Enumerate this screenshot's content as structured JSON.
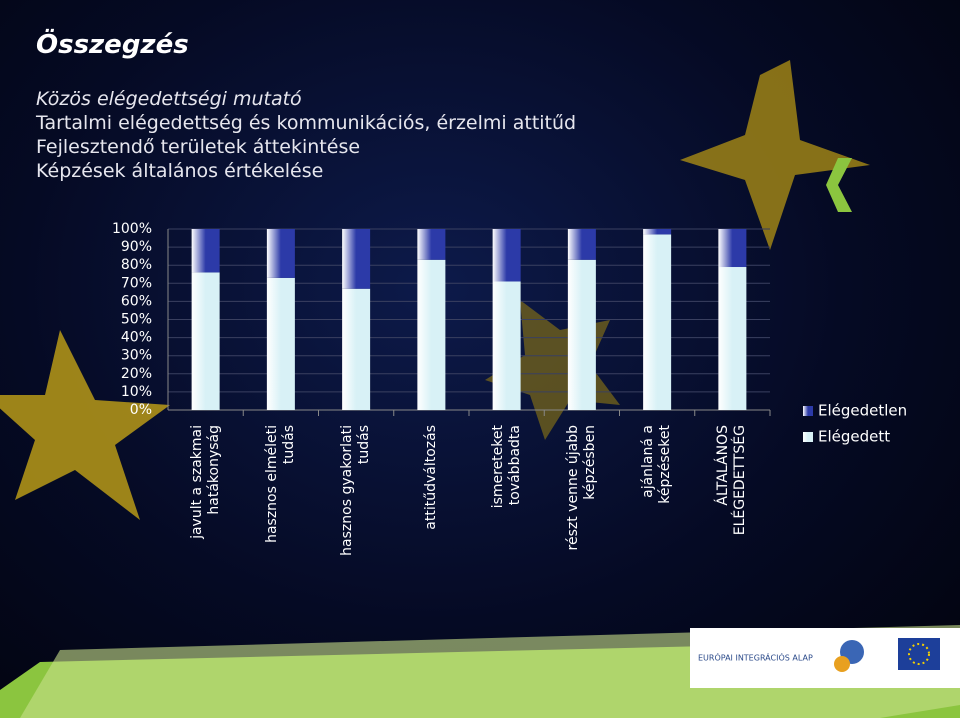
{
  "header": {
    "title": "Összegzés",
    "lines": [
      "Közös elégedettségi mutató",
      "Tartalmi elégedettség és kommunikációs, érzelmi attitűd",
      "Fejlesztendő területek áttekintése",
      "Képzések általános értékelése"
    ]
  },
  "chart_data": {
    "type": "bar",
    "stacked": true,
    "grid": true,
    "legend": "right",
    "categories": [
      "javult a szakmai\nhatákonyság",
      "hasznos elméleti\ntudás",
      "hasznos gyakorlati\ntudás",
      "attitűdváltozás",
      "ismereteket\ntovábbadta",
      "részt venne újabb\nképzésben",
      "ajánlaná a\nképzéseket",
      "ÁLTALÁNOS\nELÉGEDETTSÉG"
    ],
    "series": [
      {
        "name": "Elégedett",
        "color": "#d8f1f6",
        "values": [
          76,
          73,
          67,
          83,
          71,
          83,
          97,
          79
        ]
      },
      {
        "name": "Elégedetlen",
        "color": "#2c3aa8",
        "values": [
          24,
          27,
          33,
          17,
          29,
          17,
          3,
          21
        ]
      }
    ],
    "ylim": [
      0,
      100
    ],
    "yticks": [
      {
        "value": 0,
        "label": "0%"
      },
      {
        "value": 10,
        "label": "10%"
      },
      {
        "value": 20,
        "label": "20%"
      },
      {
        "value": 30,
        "label": "30%"
      },
      {
        "value": 40,
        "label": "40%"
      },
      {
        "value": 50,
        "label": "50%"
      },
      {
        "value": 60,
        "label": "60%"
      },
      {
        "value": 70,
        "label": "70%"
      },
      {
        "value": 80,
        "label": "80%"
      },
      {
        "value": 90,
        "label": "90%"
      },
      {
        "value": 100,
        "label": "100%"
      }
    ]
  },
  "footer": {
    "logo_text": "EURÓPAI INTEGRÁCIÓS ALAP"
  }
}
